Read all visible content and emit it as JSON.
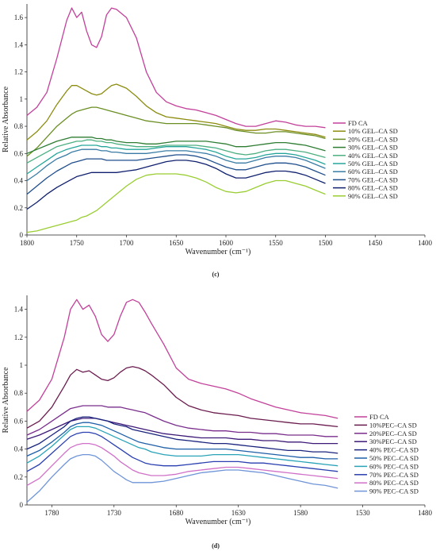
{
  "figure": {
    "panel_c_label": "(c)",
    "panel_d_label": "(d)"
  },
  "chart_data": [
    {
      "type": "line",
      "panel": "(c)",
      "xlabel": "Wavenumber (cm⁻¹)",
      "ylabel": "Relative Absorbance",
      "xlim": [
        1800,
        1400
      ],
      "ylim": [
        0,
        1.7
      ],
      "xticks": [
        1800,
        1750,
        1700,
        1650,
        1600,
        1550,
        1500,
        1450,
        1400
      ],
      "yticks": [
        0,
        0.2,
        0.4,
        0.6,
        0.8,
        1,
        1.2,
        1.4,
        1.6
      ],
      "grid": false,
      "legend": "right",
      "x": [
        1800,
        1790,
        1780,
        1770,
        1760,
        1755,
        1750,
        1745,
        1740,
        1735,
        1730,
        1725,
        1720,
        1715,
        1710,
        1700,
        1690,
        1680,
        1670,
        1660,
        1650,
        1640,
        1630,
        1620,
        1610,
        1600,
        1590,
        1580,
        1570,
        1560,
        1550,
        1540,
        1530,
        1520,
        1510,
        1500
      ],
      "series": [
        {
          "name": "FD CA",
          "color": "#c2409a",
          "values": [
            0.88,
            0.94,
            1.05,
            1.3,
            1.58,
            1.67,
            1.6,
            1.64,
            1.5,
            1.4,
            1.38,
            1.46,
            1.62,
            1.67,
            1.66,
            1.6,
            1.45,
            1.2,
            1.05,
            0.98,
            0.95,
            0.93,
            0.92,
            0.9,
            0.88,
            0.85,
            0.82,
            0.8,
            0.8,
            0.82,
            0.84,
            0.83,
            0.81,
            0.8,
            0.8,
            0.79
          ]
        },
        {
          "name": "10% GEL–CA SD",
          "color": "#8c8c10",
          "values": [
            0.7,
            0.76,
            0.84,
            0.96,
            1.06,
            1.1,
            1.1,
            1.08,
            1.06,
            1.04,
            1.03,
            1.04,
            1.07,
            1.1,
            1.11,
            1.08,
            1.02,
            0.95,
            0.9,
            0.87,
            0.86,
            0.85,
            0.84,
            0.83,
            0.82,
            0.8,
            0.78,
            0.77,
            0.77,
            0.78,
            0.78,
            0.77,
            0.76,
            0.75,
            0.74,
            0.72
          ]
        },
        {
          "name": "20% GEL–CA SD",
          "color": "#6b8e23",
          "values": [
            0.58,
            0.64,
            0.72,
            0.8,
            0.86,
            0.89,
            0.91,
            0.92,
            0.93,
            0.94,
            0.94,
            0.93,
            0.92,
            0.91,
            0.9,
            0.88,
            0.86,
            0.84,
            0.83,
            0.82,
            0.82,
            0.82,
            0.82,
            0.81,
            0.8,
            0.79,
            0.77,
            0.76,
            0.75,
            0.75,
            0.76,
            0.76,
            0.75,
            0.74,
            0.73,
            0.71
          ]
        },
        {
          "name": "30% GEL–CA SD",
          "color": "#2e7d32",
          "values": [
            0.6,
            0.63,
            0.66,
            0.69,
            0.71,
            0.72,
            0.72,
            0.72,
            0.72,
            0.72,
            0.71,
            0.71,
            0.7,
            0.7,
            0.69,
            0.68,
            0.68,
            0.67,
            0.67,
            0.68,
            0.69,
            0.69,
            0.69,
            0.69,
            0.68,
            0.67,
            0.65,
            0.65,
            0.66,
            0.67,
            0.68,
            0.68,
            0.67,
            0.66,
            0.64,
            0.62
          ]
        },
        {
          "name": "40% GEL–CA SD",
          "color": "#4caf80",
          "values": [
            0.53,
            0.57,
            0.61,
            0.65,
            0.67,
            0.68,
            0.69,
            0.69,
            0.7,
            0.7,
            0.69,
            0.69,
            0.68,
            0.68,
            0.67,
            0.66,
            0.65,
            0.65,
            0.65,
            0.66,
            0.66,
            0.66,
            0.66,
            0.65,
            0.64,
            0.62,
            0.6,
            0.59,
            0.6,
            0.62,
            0.63,
            0.63,
            0.62,
            0.61,
            0.59,
            0.57
          ]
        },
        {
          "name": "50% GEL–CA SD",
          "color": "#26a69a",
          "values": [
            0.45,
            0.5,
            0.55,
            0.6,
            0.63,
            0.64,
            0.65,
            0.66,
            0.66,
            0.66,
            0.66,
            0.65,
            0.65,
            0.64,
            0.64,
            0.63,
            0.63,
            0.63,
            0.64,
            0.65,
            0.65,
            0.65,
            0.64,
            0.63,
            0.61,
            0.58,
            0.56,
            0.56,
            0.57,
            0.59,
            0.6,
            0.6,
            0.59,
            0.57,
            0.55,
            0.52
          ]
        },
        {
          "name": "60% GEL–CA SD",
          "color": "#3a7ca5",
          "values": [
            0.4,
            0.45,
            0.51,
            0.56,
            0.59,
            0.61,
            0.62,
            0.63,
            0.63,
            0.63,
            0.63,
            0.62,
            0.62,
            0.61,
            0.61,
            0.6,
            0.6,
            0.6,
            0.61,
            0.62,
            0.62,
            0.62,
            0.61,
            0.6,
            0.58,
            0.55,
            0.53,
            0.53,
            0.55,
            0.57,
            0.58,
            0.58,
            0.57,
            0.55,
            0.52,
            0.49
          ]
        },
        {
          "name": "70% GEL–CA SD",
          "color": "#1f4e8c",
          "values": [
            0.3,
            0.36,
            0.42,
            0.47,
            0.51,
            0.53,
            0.54,
            0.55,
            0.56,
            0.56,
            0.56,
            0.56,
            0.55,
            0.55,
            0.55,
            0.55,
            0.55,
            0.56,
            0.57,
            0.58,
            0.59,
            0.59,
            0.58,
            0.56,
            0.53,
            0.5,
            0.48,
            0.48,
            0.5,
            0.52,
            0.53,
            0.53,
            0.52,
            0.5,
            0.47,
            0.44
          ]
        },
        {
          "name": "80% GEL–CA SD",
          "color": "#10206e",
          "values": [
            0.19,
            0.24,
            0.3,
            0.35,
            0.39,
            0.41,
            0.43,
            0.44,
            0.45,
            0.46,
            0.46,
            0.46,
            0.46,
            0.46,
            0.46,
            0.47,
            0.48,
            0.5,
            0.52,
            0.54,
            0.55,
            0.55,
            0.54,
            0.52,
            0.49,
            0.45,
            0.42,
            0.42,
            0.44,
            0.46,
            0.47,
            0.47,
            0.46,
            0.44,
            0.41,
            0.38
          ]
        },
        {
          "name": "90% GEL–CA SD",
          "color": "#9acd32",
          "values": [
            0.02,
            0.03,
            0.05,
            0.07,
            0.09,
            0.1,
            0.11,
            0.13,
            0.14,
            0.16,
            0.18,
            0.21,
            0.24,
            0.27,
            0.3,
            0.36,
            0.41,
            0.44,
            0.45,
            0.45,
            0.45,
            0.44,
            0.42,
            0.39,
            0.35,
            0.32,
            0.31,
            0.32,
            0.35,
            0.38,
            0.4,
            0.4,
            0.38,
            0.36,
            0.33,
            0.3
          ]
        }
      ]
    },
    {
      "type": "line",
      "panel": "(d)",
      "xlabel": "Wavenumber (cm⁻¹)",
      "ylabel": "Relative Absorbance",
      "xlim": [
        1800,
        1480
      ],
      "ylim": [
        0,
        1.5
      ],
      "xticks": [
        1780,
        1730,
        1680,
        1630,
        1580,
        1530,
        1480
      ],
      "yticks": [
        0,
        0.2,
        0.4,
        0.6,
        0.8,
        1,
        1.2,
        1.4
      ],
      "grid": false,
      "legend": "right",
      "x": [
        1800,
        1790,
        1780,
        1770,
        1765,
        1760,
        1755,
        1750,
        1745,
        1740,
        1735,
        1730,
        1725,
        1720,
        1715,
        1710,
        1705,
        1700,
        1690,
        1680,
        1670,
        1660,
        1650,
        1640,
        1630,
        1620,
        1610,
        1600,
        1590,
        1580,
        1570,
        1560,
        1550
      ],
      "series": [
        {
          "name": "FD CA",
          "color": "#c2409a",
          "values": [
            0.67,
            0.75,
            0.9,
            1.2,
            1.4,
            1.47,
            1.4,
            1.43,
            1.35,
            1.22,
            1.17,
            1.22,
            1.35,
            1.45,
            1.47,
            1.45,
            1.38,
            1.3,
            1.15,
            0.98,
            0.9,
            0.87,
            0.85,
            0.83,
            0.8,
            0.76,
            0.73,
            0.7,
            0.68,
            0.66,
            0.65,
            0.64,
            0.62
          ]
        },
        {
          "name": "10%PEC–CA SD",
          "color": "#6a1b4d",
          "values": [
            0.55,
            0.6,
            0.7,
            0.85,
            0.93,
            0.97,
            0.95,
            0.96,
            0.93,
            0.9,
            0.89,
            0.91,
            0.95,
            0.98,
            0.99,
            0.98,
            0.96,
            0.93,
            0.86,
            0.77,
            0.71,
            0.68,
            0.66,
            0.65,
            0.64,
            0.62,
            0.61,
            0.6,
            0.59,
            0.58,
            0.58,
            0.57,
            0.56
          ]
        },
        {
          "name": "20%PEC–CA SD",
          "color": "#7a2e8c",
          "values": [
            0.5,
            0.54,
            0.6,
            0.66,
            0.69,
            0.7,
            0.71,
            0.71,
            0.71,
            0.71,
            0.7,
            0.7,
            0.7,
            0.69,
            0.68,
            0.67,
            0.66,
            0.64,
            0.6,
            0.57,
            0.55,
            0.54,
            0.53,
            0.53,
            0.52,
            0.52,
            0.51,
            0.51,
            0.5,
            0.5,
            0.5,
            0.49,
            0.49
          ]
        },
        {
          "name": "30%PEC–CA SD",
          "color": "#3d1a78",
          "values": [
            0.47,
            0.5,
            0.54,
            0.58,
            0.6,
            0.61,
            0.62,
            0.62,
            0.62,
            0.61,
            0.6,
            0.59,
            0.58,
            0.57,
            0.56,
            0.55,
            0.54,
            0.53,
            0.51,
            0.5,
            0.49,
            0.48,
            0.48,
            0.48,
            0.47,
            0.47,
            0.46,
            0.46,
            0.45,
            0.45,
            0.44,
            0.44,
            0.44
          ]
        },
        {
          "name": "40% PEC–CA SD",
          "color": "#1a237e",
          "values": [
            0.4,
            0.44,
            0.5,
            0.56,
            0.6,
            0.62,
            0.63,
            0.63,
            0.62,
            0.61,
            0.6,
            0.58,
            0.57,
            0.56,
            0.54,
            0.53,
            0.52,
            0.51,
            0.49,
            0.47,
            0.46,
            0.45,
            0.44,
            0.44,
            0.43,
            0.42,
            0.41,
            0.4,
            0.39,
            0.39,
            0.38,
            0.38,
            0.37
          ]
        },
        {
          "name": "50% PEC–CA SD",
          "color": "#1e5fa8",
          "values": [
            0.35,
            0.39,
            0.45,
            0.52,
            0.56,
            0.58,
            0.59,
            0.59,
            0.58,
            0.57,
            0.55,
            0.53,
            0.51,
            0.49,
            0.47,
            0.45,
            0.44,
            0.43,
            0.41,
            0.4,
            0.4,
            0.4,
            0.4,
            0.4,
            0.39,
            0.38,
            0.37,
            0.36,
            0.35,
            0.34,
            0.34,
            0.33,
            0.33
          ]
        },
        {
          "name": "60% PEC–CA SD",
          "color": "#29a3b8",
          "values": [
            0.3,
            0.35,
            0.42,
            0.5,
            0.54,
            0.56,
            0.56,
            0.56,
            0.55,
            0.53,
            0.51,
            0.49,
            0.47,
            0.45,
            0.43,
            0.41,
            0.4,
            0.38,
            0.36,
            0.35,
            0.35,
            0.35,
            0.36,
            0.36,
            0.36,
            0.35,
            0.34,
            0.33,
            0.32,
            0.31,
            0.3,
            0.29,
            0.28
          ]
        },
        {
          "name": "70% PEC–CA SD",
          "color": "#2a3fb0",
          "values": [
            0.24,
            0.29,
            0.37,
            0.45,
            0.49,
            0.51,
            0.52,
            0.52,
            0.51,
            0.49,
            0.46,
            0.43,
            0.4,
            0.37,
            0.34,
            0.32,
            0.3,
            0.29,
            0.28,
            0.28,
            0.29,
            0.3,
            0.31,
            0.31,
            0.31,
            0.3,
            0.3,
            0.29,
            0.28,
            0.27,
            0.26,
            0.25,
            0.24
          ]
        },
        {
          "name": "80% PEC–CA SD",
          "color": "#d070c8",
          "values": [
            0.14,
            0.19,
            0.28,
            0.37,
            0.41,
            0.43,
            0.44,
            0.44,
            0.43,
            0.41,
            0.38,
            0.35,
            0.31,
            0.28,
            0.25,
            0.23,
            0.22,
            0.21,
            0.21,
            0.22,
            0.24,
            0.25,
            0.26,
            0.27,
            0.27,
            0.26,
            0.25,
            0.24,
            0.23,
            0.22,
            0.21,
            0.2,
            0.19
          ]
        },
        {
          "name": "90% PEC–CA SD",
          "color": "#6f95d8",
          "values": [
            0.02,
            0.1,
            0.2,
            0.29,
            0.33,
            0.35,
            0.36,
            0.36,
            0.35,
            0.32,
            0.28,
            0.24,
            0.21,
            0.18,
            0.16,
            0.16,
            0.16,
            0.16,
            0.17,
            0.19,
            0.21,
            0.23,
            0.24,
            0.25,
            0.25,
            0.24,
            0.23,
            0.21,
            0.19,
            0.17,
            0.15,
            0.14,
            0.12
          ]
        }
      ]
    }
  ]
}
